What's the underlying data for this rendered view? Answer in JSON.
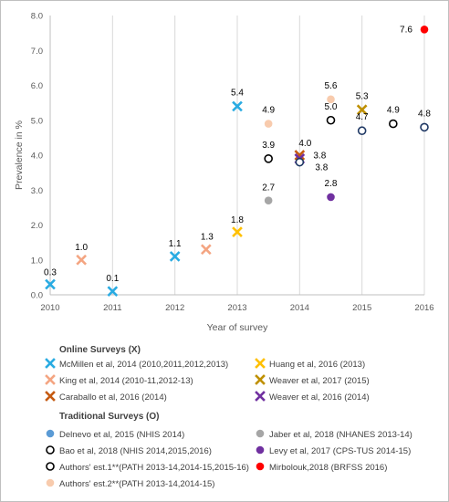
{
  "chart_data": {
    "type": "scatter",
    "xlabel": "Year of survey",
    "ylabel": "Prevalence in %",
    "xlim": [
      2010,
      2016
    ],
    "ylim": [
      0,
      8
    ],
    "x_ticks": [
      "2010",
      "2011",
      "2012",
      "2013",
      "2014",
      "2015",
      "2016"
    ],
    "y_ticks": [
      "0.0",
      "1.0",
      "2.0",
      "3.0",
      "4.0",
      "5.0",
      "6.0",
      "7.0",
      "8.0"
    ],
    "grid": "vertical",
    "legend_position": "bottom",
    "legend_groups": [
      {
        "title": "Online Surveys (X)",
        "entries": [
          "McMillen et al, 2014 (2010,2011,2012,2013)",
          "Huang et al, 2016 (2013)",
          "King et al, 2014 (2010-11,2012-13)",
          "Weaver et al, 2017 (2015)",
          "Caraballo et al, 2016 (2014)",
          "Weaver et al, 2016 (2014)"
        ]
      },
      {
        "title": "Traditional Surveys (O)",
        "entries": [
          "Delnevo et al, 2015 (NHIS 2014)",
          "Jaber et al, 2018 (NHANES 2013-14)",
          "Bao et al, 2018 (NHIS 2014,2015,2016)",
          "Levy et al, 2017 (CPS-TUS 2014-15)",
          "Authors' est.1**(PATH 2013-14,2014-15,2015-16)",
          "Mirbolouk,2018 (BRFSS 2016)",
          "Authors' est.2**(PATH 2013-14,2014-15)"
        ]
      }
    ],
    "series": [
      {
        "marker": "x",
        "color": "#29ABE2",
        "points": [
          {
            "x": 2010,
            "y": 0.3,
            "label": "0.3"
          },
          {
            "x": 2011,
            "y": 0.1,
            "label": "0.1"
          },
          {
            "x": 2012,
            "y": 1.1,
            "label": "1.1"
          },
          {
            "x": 2013,
            "y": 5.4,
            "label": "5.4"
          }
        ]
      },
      {
        "marker": "x",
        "color": "#FFC000",
        "points": [
          {
            "x": 2013,
            "y": 1.8,
            "label": "1.8"
          }
        ]
      },
      {
        "marker": "x",
        "color": "#F4A582",
        "points": [
          {
            "x": 2010.5,
            "y": 1.0,
            "label": "1.0"
          },
          {
            "x": 2012.5,
            "y": 1.3,
            "label": "1.3"
          }
        ]
      },
      {
        "marker": "x",
        "color": "#BF9000",
        "points": [
          {
            "x": 2015,
            "y": 5.3,
            "label": "5.3"
          }
        ]
      },
      {
        "marker": "x",
        "color": "#C55A11",
        "points": [
          {
            "x": 2014,
            "y": 4.0,
            "label": "4.0"
          }
        ]
      },
      {
        "marker": "x",
        "color": "#7030A0",
        "points": [
          {
            "x": 2014,
            "y": 3.9,
            "label": ""
          }
        ]
      },
      {
        "marker": "dot",
        "color": "#5B9BD5",
        "points": [
          {
            "x": 2014,
            "y": 3.8,
            "label": "3.8"
          }
        ]
      },
      {
        "marker": "dot",
        "color": "#A6A6A6",
        "points": [
          {
            "x": 2013.5,
            "y": 2.7,
            "label": "2.7"
          }
        ]
      },
      {
        "marker": "ring",
        "color": "#1F3864",
        "points": [
          {
            "x": 2014,
            "y": 3.8,
            "label": "3.8"
          },
          {
            "x": 2015,
            "y": 4.7,
            "label": "4.7"
          },
          {
            "x": 2016,
            "y": 4.8,
            "label": "4.8"
          }
        ]
      },
      {
        "marker": "dot",
        "color": "#7030A0",
        "points": [
          {
            "x": 2014.5,
            "y": 2.8,
            "label": "2.8"
          }
        ]
      },
      {
        "marker": "ring",
        "color": "#000000",
        "points": [
          {
            "x": 2013.5,
            "y": 3.9,
            "label": "3.9"
          },
          {
            "x": 2014.5,
            "y": 5.0,
            "label": "5.0"
          },
          {
            "x": 2015.5,
            "y": 4.9,
            "label": "4.9"
          }
        ]
      },
      {
        "marker": "dot",
        "color": "#FF0000",
        "points": [
          {
            "x": 2016,
            "y": 7.6,
            "label": "7.6"
          }
        ]
      },
      {
        "marker": "dot",
        "color": "#F8CBAD",
        "points": [
          {
            "x": 2013.5,
            "y": 4.9,
            "label": "4.9"
          },
          {
            "x": 2014.5,
            "y": 5.6,
            "label": "5.6"
          }
        ]
      }
    ]
  }
}
